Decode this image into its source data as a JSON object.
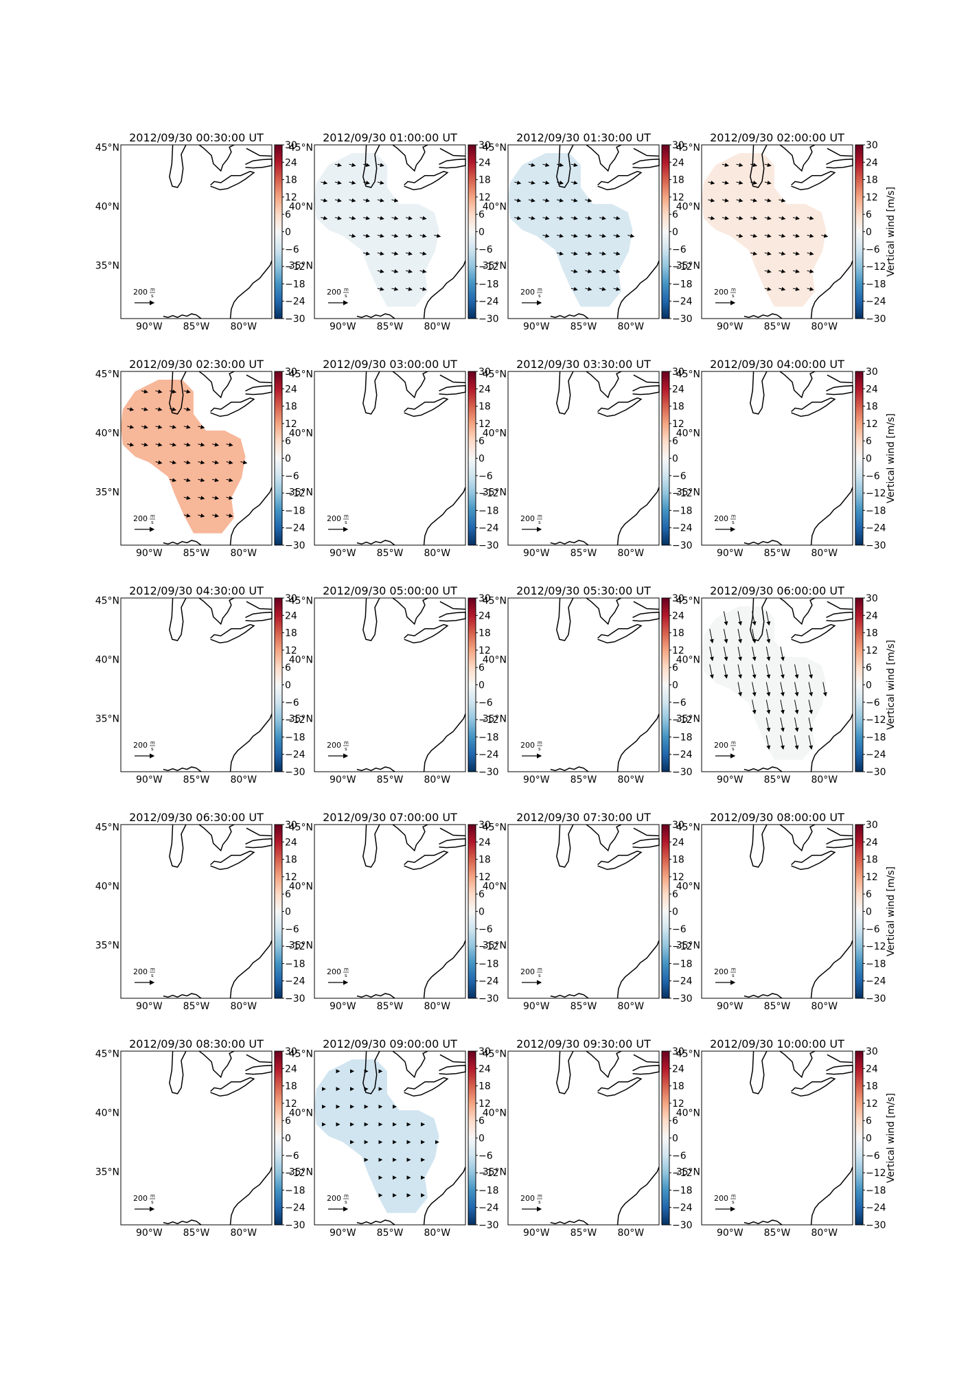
{
  "chart_data": {
    "type": "heatmap",
    "description_free": true,
    "colorbar": {
      "label": "Vertical wind [m/s]",
      "ticks": [
        30,
        24,
        18,
        12,
        6,
        0,
        -6,
        -12,
        -18,
        -24,
        -30
      ],
      "range": [
        -30,
        30
      ],
      "colormap": [
        "#053061",
        "#2166ac",
        "#4393c3",
        "#92c5de",
        "#d1e5f0",
        "#f7f7f7",
        "#fddbc7",
        "#f4a582",
        "#d6604d",
        "#b2182b",
        "#67001f"
      ]
    },
    "x_ticks": [
      "90°W",
      "85°W",
      "80°W"
    ],
    "y_ticks": [
      "45°N",
      "40°N",
      "35°N"
    ],
    "lon_range": [
      -93,
      -77
    ],
    "lat_range": [
      30.5,
      45.2
    ],
    "reference_arrow": {
      "label": "200",
      "unit_num": "m",
      "unit_den": "s"
    },
    "panels": [
      {
        "title": "2012/09/30 00:30:00 UT",
        "value": null,
        "arrows": "none"
      },
      {
        "title": "2012/09/30 01:00:00 UT",
        "value": -2,
        "arrows": "east-small"
      },
      {
        "title": "2012/09/30 01:30:00 UT",
        "value": -5,
        "arrows": "east-small"
      },
      {
        "title": "2012/09/30 02:00:00 UT",
        "value": 3,
        "arrows": "east-small"
      },
      {
        "title": "2012/09/30 02:30:00 UT",
        "value": 10,
        "arrows": "east-small"
      },
      {
        "title": "2012/09/30 03:00:00 UT",
        "value": null,
        "arrows": "none"
      },
      {
        "title": "2012/09/30 03:30:00 UT",
        "value": null,
        "arrows": "none"
      },
      {
        "title": "2012/09/30 04:00:00 UT",
        "value": null,
        "arrows": "none"
      },
      {
        "title": "2012/09/30 04:30:00 UT",
        "value": null,
        "arrows": "none"
      },
      {
        "title": "2012/09/30 05:00:00 UT",
        "value": null,
        "arrows": "none"
      },
      {
        "title": "2012/09/30 05:30:00 UT",
        "value": null,
        "arrows": "none"
      },
      {
        "title": "2012/09/30 06:00:00 UT",
        "value": -0.5,
        "arrows": "south-large"
      },
      {
        "title": "2012/09/30 06:30:00 UT",
        "value": null,
        "arrows": "none"
      },
      {
        "title": "2012/09/30 07:00:00 UT",
        "value": null,
        "arrows": "none"
      },
      {
        "title": "2012/09/30 07:30:00 UT",
        "value": null,
        "arrows": "none"
      },
      {
        "title": "2012/09/30 08:00:00 UT",
        "value": null,
        "arrows": "none"
      },
      {
        "title": "2012/09/30 08:30:00 UT",
        "value": null,
        "arrows": "none"
      },
      {
        "title": "2012/09/30 09:00:00 UT",
        "value": -6,
        "arrows": "tiny"
      },
      {
        "title": "2012/09/30 09:30:00 UT",
        "value": null,
        "arrows": "none"
      },
      {
        "title": "2012/09/30 10:00:00 UT",
        "value": null,
        "arrows": "none"
      }
    ]
  }
}
